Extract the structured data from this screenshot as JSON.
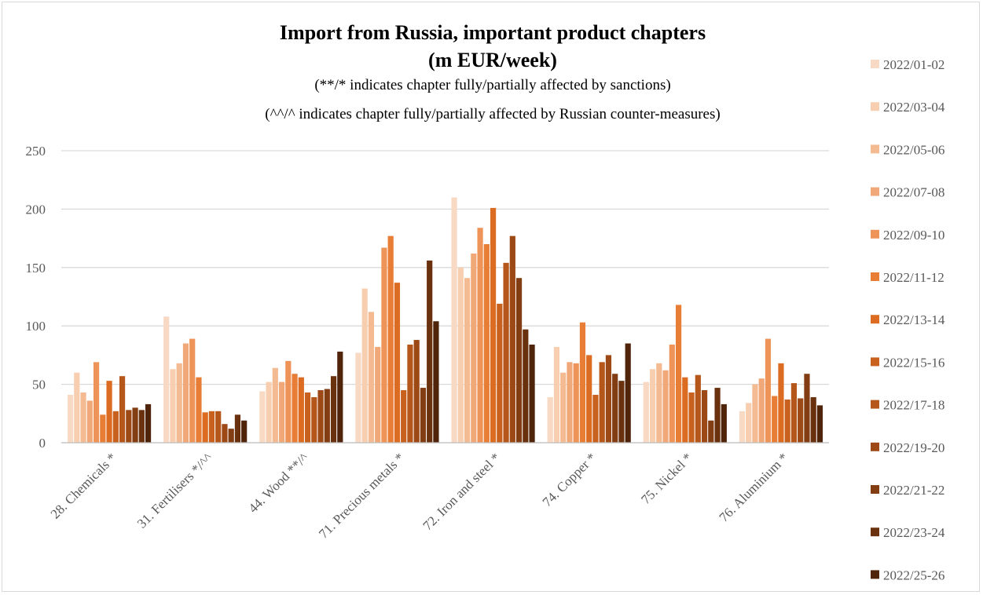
{
  "chart_data": {
    "type": "bar",
    "title": "Import from Russia, important product chapters",
    "title_line2": "(m EUR/week)",
    "subtitle1": "(**/* indicates chapter fully/partially affected by sanctions)",
    "subtitle2": "(^^/^ indicates chapter fully/partially affected by Russian counter-measures)",
    "ylim": [
      0,
      250
    ],
    "yticks": [
      0,
      50,
      100,
      150,
      200,
      250
    ],
    "grid": true,
    "legend_position": "right",
    "categories": [
      "28. Chemicals *",
      "31. Fertilisers */^^",
      "44. Wood **/^",
      "71. Precious metals *",
      "72. Iron and steel *",
      "74. Copper *",
      "75. Nickel *",
      "76. Aluminium *"
    ],
    "series": [
      {
        "name": "2022/01-02",
        "color": "#f8d9c4",
        "values": [
          41,
          108,
          44,
          77,
          210,
          39,
          52,
          27
        ]
      },
      {
        "name": "2022/03-04",
        "color": "#f7cfb0",
        "values": [
          60,
          63,
          52,
          132,
          150,
          82,
          63,
          34
        ]
      },
      {
        "name": "2022/05-06",
        "color": "#f4bb92",
        "values": [
          43,
          68,
          64,
          112,
          141,
          60,
          68,
          50
        ]
      },
      {
        "name": "2022/07-08",
        "color": "#f1a878",
        "values": [
          36,
          85,
          52,
          82,
          162,
          69,
          62,
          55
        ]
      },
      {
        "name": "2022/09-10",
        "color": "#ee9458",
        "values": [
          69,
          89,
          70,
          167,
          184,
          68,
          84,
          89
        ]
      },
      {
        "name": "2022/11-12",
        "color": "#e87d36",
        "values": [
          24,
          56,
          59,
          177,
          170,
          103,
          118,
          40
        ]
      },
      {
        "name": "2022/13-14",
        "color": "#dc6c22",
        "values": [
          53,
          26,
          56,
          137,
          201,
          75,
          56,
          68
        ]
      },
      {
        "name": "2022/15-16",
        "color": "#c8601e",
        "values": [
          27,
          27,
          43,
          45,
          119,
          41,
          43,
          37
        ]
      },
      {
        "name": "2022/17-18",
        "color": "#b5561a",
        "values": [
          57,
          27,
          39,
          84,
          154,
          69,
          58,
          51
        ]
      },
      {
        "name": "2022/19-20",
        "color": "#9c4916",
        "values": [
          28,
          16,
          45,
          88,
          177,
          75,
          45,
          38
        ]
      },
      {
        "name": "2022/21-22",
        "color": "#833d13",
        "values": [
          30,
          12,
          46,
          47,
          141,
          59,
          19,
          59
        ]
      },
      {
        "name": "2022/23-24",
        "color": "#6a310f",
        "values": [
          28,
          24,
          57,
          156,
          97,
          53,
          47,
          39
        ]
      },
      {
        "name": "2022/25-26",
        "color": "#4f240b",
        "values": [
          33,
          19,
          78,
          104,
          84,
          85,
          33,
          32
        ]
      }
    ]
  }
}
